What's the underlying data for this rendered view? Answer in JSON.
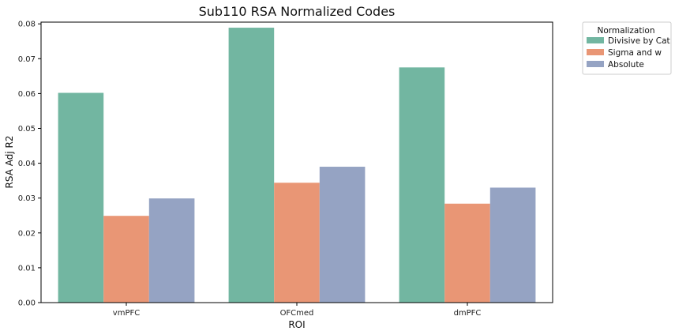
{
  "chart_data": {
    "type": "bar",
    "title": "Sub110 RSA Normalized Codes",
    "xlabel": "ROI",
    "ylabel": "RSA Adj R2",
    "categories": [
      "vmPFC",
      "OFCmed",
      "dmPFC"
    ],
    "series": [
      {
        "name": "Divisive by Cat",
        "color": "#72b6a1",
        "values": [
          0.0602,
          0.0789,
          0.0675
        ]
      },
      {
        "name": "Sigma and w",
        "color": "#e99675",
        "values": [
          0.0249,
          0.0344,
          0.0284
        ]
      },
      {
        "name": "Absolute",
        "color": "#95a3c3",
        "values": [
          0.0299,
          0.039,
          0.033
        ]
      }
    ],
    "ylim": [
      0,
      0.0805
    ],
    "yticks": [
      "0.00",
      "0.01",
      "0.02",
      "0.03",
      "0.04",
      "0.05",
      "0.06",
      "0.07",
      "0.08"
    ],
    "grid": false,
    "legend": {
      "title": "Normalization",
      "placement": "outside-top-right"
    }
  }
}
